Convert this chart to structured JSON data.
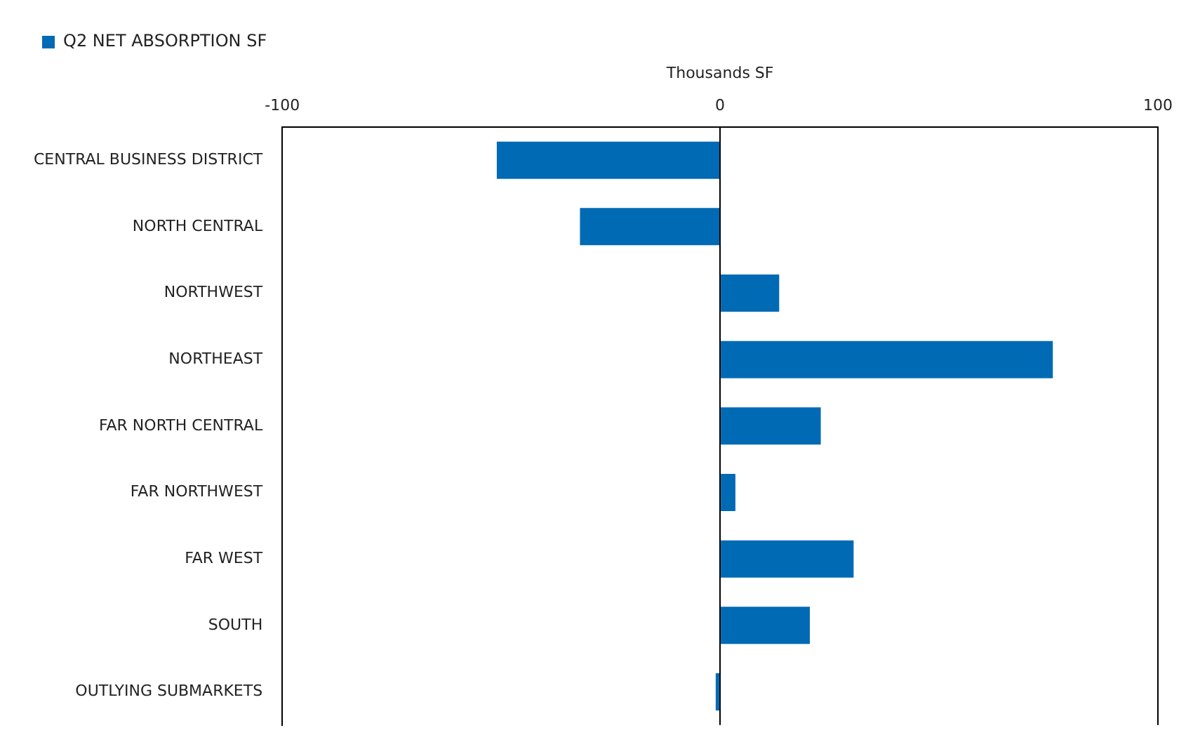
{
  "chart_data": {
    "type": "bar",
    "orientation": "horizontal",
    "xlabel": "Thousands SF",
    "categories": [
      "CENTRAL BUSINESS DISTRICT",
      "NORTH CENTRAL",
      "NORTHWEST",
      "NORTHEAST",
      "FAR NORTH CENTRAL",
      "FAR NORTHWEST",
      "FAR WEST",
      "SOUTH",
      "OUTLYING SUBMARKETS"
    ],
    "series": [
      {
        "name": "Q2 NET ABSORPTION SF",
        "color": "#006ab4",
        "values": [
          -51,
          -32,
          13.5,
          76,
          23,
          3.5,
          30.5,
          20.5,
          -1
        ]
      }
    ],
    "xlim": [
      -100,
      100
    ],
    "xticks": [
      -100,
      0,
      100
    ],
    "grid": "x",
    "legend": "top left"
  }
}
